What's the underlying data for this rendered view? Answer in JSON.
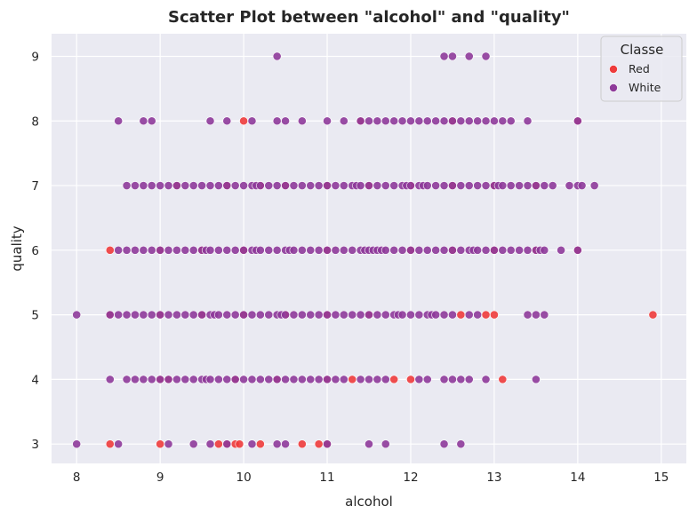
{
  "chart_data": {
    "type": "scatter",
    "title": "Scatter Plot between \"alcohol\" and \"quality\"",
    "xlabel": "alcohol",
    "ylabel": "quality",
    "xlim": [
      7.7,
      15.3
    ],
    "ylim": [
      2.7,
      9.35
    ],
    "xticks": [
      "8",
      "9",
      "10",
      "11",
      "12",
      "13",
      "14",
      "15"
    ],
    "yticks": [
      "3",
      "4",
      "5",
      "6",
      "7",
      "8",
      "9"
    ],
    "grid": true,
    "legend": {
      "title": "Classe",
      "position": "top-right"
    },
    "colors": {
      "background": "#eaeaf2",
      "grid": "#ffffff",
      "Red": "#ee3b3b",
      "White": "#8e3a9a",
      "overlap": "#800080"
    },
    "series": [
      {
        "name": "Red",
        "points": [
          [
            8.4,
            3
          ],
          [
            9.0,
            3
          ],
          [
            9.7,
            3
          ],
          [
            9.8,
            3
          ],
          [
            9.9,
            3
          ],
          [
            9.95,
            3
          ],
          [
            10.2,
            3
          ],
          [
            10.7,
            3
          ],
          [
            10.9,
            3
          ],
          [
            11.0,
            3
          ],
          [
            9.0,
            4
          ],
          [
            9.1,
            4
          ],
          [
            9.9,
            4
          ],
          [
            10.4,
            4
          ],
          [
            11.0,
            4
          ],
          [
            11.3,
            4
          ],
          [
            11.8,
            4
          ],
          [
            12.0,
            4
          ],
          [
            13.1,
            4
          ],
          [
            8.4,
            5
          ],
          [
            9.0,
            5
          ],
          [
            9.5,
            5
          ],
          [
            10.0,
            5
          ],
          [
            10.5,
            5
          ],
          [
            11.0,
            5
          ],
          [
            11.5,
            5
          ],
          [
            12.6,
            5
          ],
          [
            12.9,
            5
          ],
          [
            13.0,
            5
          ],
          [
            14.9,
            5
          ],
          [
            8.4,
            6
          ],
          [
            9.0,
            6
          ],
          [
            9.5,
            6
          ],
          [
            10.0,
            6
          ],
          [
            11.0,
            6
          ],
          [
            12.0,
            6
          ],
          [
            12.5,
            6
          ],
          [
            13.0,
            6
          ],
          [
            13.5,
            6
          ],
          [
            14.0,
            6
          ],
          [
            9.2,
            7
          ],
          [
            9.8,
            7
          ],
          [
            10.2,
            7
          ],
          [
            10.5,
            7
          ],
          [
            11.0,
            7
          ],
          [
            11.5,
            7
          ],
          [
            12.0,
            7
          ],
          [
            12.5,
            7
          ],
          [
            13.0,
            7
          ],
          [
            13.5,
            7
          ],
          [
            10.0,
            8
          ],
          [
            11.4,
            8
          ],
          [
            12.5,
            8
          ],
          [
            14.0,
            8
          ]
        ]
      },
      {
        "name": "White",
        "points": [
          [
            8.0,
            3
          ],
          [
            8.5,
            3
          ],
          [
            9.1,
            3
          ],
          [
            9.4,
            3
          ],
          [
            9.6,
            3
          ],
          [
            9.8,
            3
          ],
          [
            10.1,
            3
          ],
          [
            10.4,
            3
          ],
          [
            10.5,
            3
          ],
          [
            11.0,
            3
          ],
          [
            11.5,
            3
          ],
          [
            11.7,
            3
          ],
          [
            12.4,
            3
          ],
          [
            12.6,
            3
          ],
          [
            8.4,
            4
          ],
          [
            8.6,
            4
          ],
          [
            8.7,
            4
          ],
          [
            8.8,
            4
          ],
          [
            8.9,
            4
          ],
          [
            9.0,
            4
          ],
          [
            9.1,
            4
          ],
          [
            9.2,
            4
          ],
          [
            9.3,
            4
          ],
          [
            9.4,
            4
          ],
          [
            9.5,
            4
          ],
          [
            9.55,
            4
          ],
          [
            9.6,
            4
          ],
          [
            9.7,
            4
          ],
          [
            9.8,
            4
          ],
          [
            9.9,
            4
          ],
          [
            10.0,
            4
          ],
          [
            10.1,
            4
          ],
          [
            10.2,
            4
          ],
          [
            10.3,
            4
          ],
          [
            10.4,
            4
          ],
          [
            10.5,
            4
          ],
          [
            10.6,
            4
          ],
          [
            10.7,
            4
          ],
          [
            10.8,
            4
          ],
          [
            10.9,
            4
          ],
          [
            11.0,
            4
          ],
          [
            11.1,
            4
          ],
          [
            11.2,
            4
          ],
          [
            11.4,
            4
          ],
          [
            11.5,
            4
          ],
          [
            11.6,
            4
          ],
          [
            11.7,
            4
          ],
          [
            12.1,
            4
          ],
          [
            12.2,
            4
          ],
          [
            12.4,
            4
          ],
          [
            12.5,
            4
          ],
          [
            12.6,
            4
          ],
          [
            12.7,
            4
          ],
          [
            12.9,
            4
          ],
          [
            13.5,
            4
          ],
          [
            8.0,
            5
          ],
          [
            8.4,
            5
          ],
          [
            8.5,
            5
          ],
          [
            8.6,
            5
          ],
          [
            8.7,
            5
          ],
          [
            8.8,
            5
          ],
          [
            8.9,
            5
          ],
          [
            9.0,
            5
          ],
          [
            9.1,
            5
          ],
          [
            9.2,
            5
          ],
          [
            9.3,
            5
          ],
          [
            9.4,
            5
          ],
          [
            9.5,
            5
          ],
          [
            9.6,
            5
          ],
          [
            9.65,
            5
          ],
          [
            9.7,
            5
          ],
          [
            9.8,
            5
          ],
          [
            9.9,
            5
          ],
          [
            10.0,
            5
          ],
          [
            10.1,
            5
          ],
          [
            10.2,
            5
          ],
          [
            10.3,
            5
          ],
          [
            10.4,
            5
          ],
          [
            10.45,
            5
          ],
          [
            10.5,
            5
          ],
          [
            10.6,
            5
          ],
          [
            10.7,
            5
          ],
          [
            10.8,
            5
          ],
          [
            10.9,
            5
          ],
          [
            11.0,
            5
          ],
          [
            11.1,
            5
          ],
          [
            11.2,
            5
          ],
          [
            11.3,
            5
          ],
          [
            11.4,
            5
          ],
          [
            11.5,
            5
          ],
          [
            11.6,
            5
          ],
          [
            11.7,
            5
          ],
          [
            11.8,
            5
          ],
          [
            11.85,
            5
          ],
          [
            11.9,
            5
          ],
          [
            12.0,
            5
          ],
          [
            12.1,
            5
          ],
          [
            12.2,
            5
          ],
          [
            12.25,
            5
          ],
          [
            12.3,
            5
          ],
          [
            12.4,
            5
          ],
          [
            12.5,
            5
          ],
          [
            12.7,
            5
          ],
          [
            12.8,
            5
          ],
          [
            13.4,
            5
          ],
          [
            13.5,
            5
          ],
          [
            13.6,
            5
          ],
          [
            8.5,
            6
          ],
          [
            8.6,
            6
          ],
          [
            8.7,
            6
          ],
          [
            8.8,
            6
          ],
          [
            8.9,
            6
          ],
          [
            9.0,
            6
          ],
          [
            9.1,
            6
          ],
          [
            9.2,
            6
          ],
          [
            9.3,
            6
          ],
          [
            9.4,
            6
          ],
          [
            9.5,
            6
          ],
          [
            9.55,
            6
          ],
          [
            9.6,
            6
          ],
          [
            9.7,
            6
          ],
          [
            9.8,
            6
          ],
          [
            9.9,
            6
          ],
          [
            10.0,
            6
          ],
          [
            10.1,
            6
          ],
          [
            10.15,
            6
          ],
          [
            10.2,
            6
          ],
          [
            10.3,
            6
          ],
          [
            10.4,
            6
          ],
          [
            10.5,
            6
          ],
          [
            10.55,
            6
          ],
          [
            10.6,
            6
          ],
          [
            10.7,
            6
          ],
          [
            10.8,
            6
          ],
          [
            10.9,
            6
          ],
          [
            11.0,
            6
          ],
          [
            11.1,
            6
          ],
          [
            11.2,
            6
          ],
          [
            11.3,
            6
          ],
          [
            11.4,
            6
          ],
          [
            11.45,
            6
          ],
          [
            11.5,
            6
          ],
          [
            11.55,
            6
          ],
          [
            11.6,
            6
          ],
          [
            11.65,
            6
          ],
          [
            11.7,
            6
          ],
          [
            11.8,
            6
          ],
          [
            11.9,
            6
          ],
          [
            12.0,
            6
          ],
          [
            12.1,
            6
          ],
          [
            12.2,
            6
          ],
          [
            12.3,
            6
          ],
          [
            12.4,
            6
          ],
          [
            12.5,
            6
          ],
          [
            12.6,
            6
          ],
          [
            12.7,
            6
          ],
          [
            12.75,
            6
          ],
          [
            12.8,
            6
          ],
          [
            12.9,
            6
          ],
          [
            13.0,
            6
          ],
          [
            13.1,
            6
          ],
          [
            13.2,
            6
          ],
          [
            13.3,
            6
          ],
          [
            13.4,
            6
          ],
          [
            13.5,
            6
          ],
          [
            13.55,
            6
          ],
          [
            13.6,
            6
          ],
          [
            13.8,
            6
          ],
          [
            14.0,
            6
          ],
          [
            8.6,
            7
          ],
          [
            8.7,
            7
          ],
          [
            8.8,
            7
          ],
          [
            8.9,
            7
          ],
          [
            9.0,
            7
          ],
          [
            9.1,
            7
          ],
          [
            9.2,
            7
          ],
          [
            9.3,
            7
          ],
          [
            9.4,
            7
          ],
          [
            9.5,
            7
          ],
          [
            9.6,
            7
          ],
          [
            9.7,
            7
          ],
          [
            9.8,
            7
          ],
          [
            9.9,
            7
          ],
          [
            10.0,
            7
          ],
          [
            10.1,
            7
          ],
          [
            10.15,
            7
          ],
          [
            10.2,
            7
          ],
          [
            10.3,
            7
          ],
          [
            10.4,
            7
          ],
          [
            10.5,
            7
          ],
          [
            10.6,
            7
          ],
          [
            10.7,
            7
          ],
          [
            10.8,
            7
          ],
          [
            10.9,
            7
          ],
          [
            11.0,
            7
          ],
          [
            11.1,
            7
          ],
          [
            11.2,
            7
          ],
          [
            11.3,
            7
          ],
          [
            11.35,
            7
          ],
          [
            11.4,
            7
          ],
          [
            11.5,
            7
          ],
          [
            11.6,
            7
          ],
          [
            11.7,
            7
          ],
          [
            11.8,
            7
          ],
          [
            11.9,
            7
          ],
          [
            11.95,
            7
          ],
          [
            12.0,
            7
          ],
          [
            12.1,
            7
          ],
          [
            12.15,
            7
          ],
          [
            12.2,
            7
          ],
          [
            12.3,
            7
          ],
          [
            12.4,
            7
          ],
          [
            12.5,
            7
          ],
          [
            12.6,
            7
          ],
          [
            12.7,
            7
          ],
          [
            12.8,
            7
          ],
          [
            12.9,
            7
          ],
          [
            13.0,
            7
          ],
          [
            13.05,
            7
          ],
          [
            13.1,
            7
          ],
          [
            13.2,
            7
          ],
          [
            13.3,
            7
          ],
          [
            13.4,
            7
          ],
          [
            13.5,
            7
          ],
          [
            13.6,
            7
          ],
          [
            13.7,
            7
          ],
          [
            13.9,
            7
          ],
          [
            14.0,
            7
          ],
          [
            14.05,
            7
          ],
          [
            14.2,
            7
          ],
          [
            8.5,
            8
          ],
          [
            8.8,
            8
          ],
          [
            8.9,
            8
          ],
          [
            9.6,
            8
          ],
          [
            9.8,
            8
          ],
          [
            10.1,
            8
          ],
          [
            10.4,
            8
          ],
          [
            10.5,
            8
          ],
          [
            10.7,
            8
          ],
          [
            11.0,
            8
          ],
          [
            11.2,
            8
          ],
          [
            11.4,
            8
          ],
          [
            11.5,
            8
          ],
          [
            11.6,
            8
          ],
          [
            11.7,
            8
          ],
          [
            11.8,
            8
          ],
          [
            11.9,
            8
          ],
          [
            12.0,
            8
          ],
          [
            12.1,
            8
          ],
          [
            12.2,
            8
          ],
          [
            12.3,
            8
          ],
          [
            12.4,
            8
          ],
          [
            12.5,
            8
          ],
          [
            12.6,
            8
          ],
          [
            12.7,
            8
          ],
          [
            12.8,
            8
          ],
          [
            12.9,
            8
          ],
          [
            13.0,
            8
          ],
          [
            13.1,
            8
          ],
          [
            13.2,
            8
          ],
          [
            13.4,
            8
          ],
          [
            14.0,
            8
          ],
          [
            10.4,
            9
          ],
          [
            12.4,
            9
          ],
          [
            12.5,
            9
          ],
          [
            12.7,
            9
          ],
          [
            12.9,
            9
          ]
        ]
      }
    ]
  }
}
